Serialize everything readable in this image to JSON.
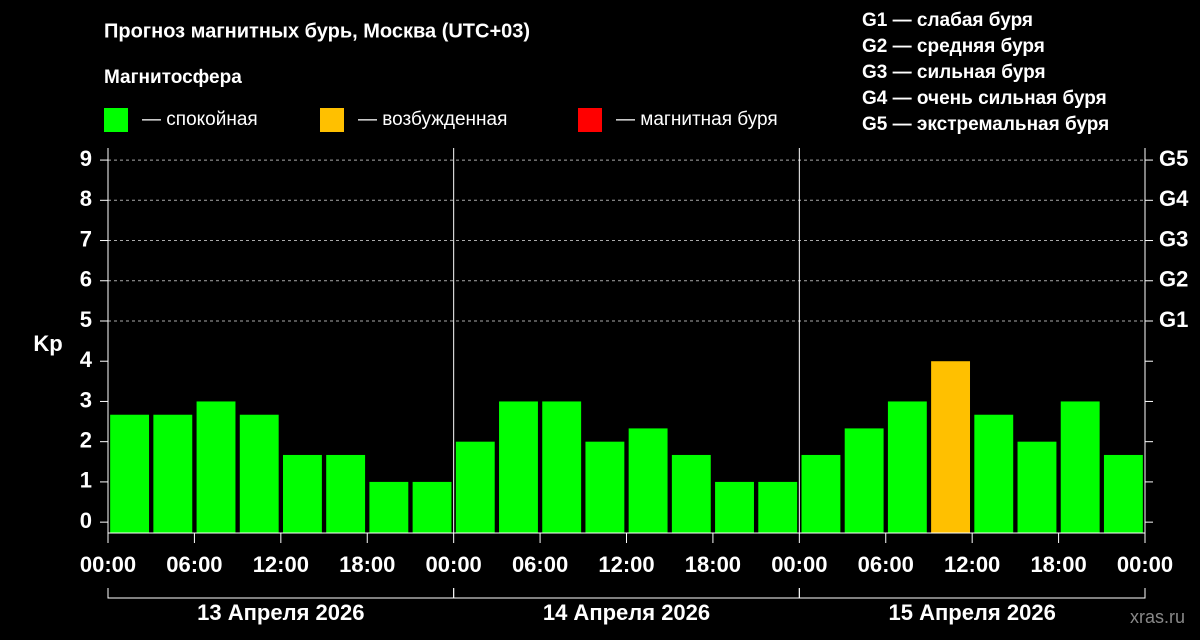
{
  "chart_data": {
    "type": "bar",
    "title": "Прогноз магнитных бурь, Москва (UTC+03)",
    "subtitle": "Магнитосфера",
    "ylabel": "Kp",
    "legend": [
      {
        "label": "— спокойная",
        "color": "#00ff00"
      },
      {
        "label": "— возбужденная",
        "color": "#ffc000"
      },
      {
        "label": "— магнитная буря",
        "color": "#ff0000"
      }
    ],
    "scale_notes": [
      "G1 — слабая буря",
      "G2 — средняя буря",
      "G3 — сильная буря",
      "G4 — очень сильная буря",
      "G5 — экстремальная буря"
    ],
    "x": [
      1.5,
      4.5,
      7.5,
      10.5,
      13.5,
      16.5,
      19.5,
      22.5,
      25.5,
      28.5,
      31.5,
      34.5,
      37.5,
      40.5,
      43.5,
      46.5,
      49.5,
      52.5,
      55.5,
      58.5,
      61.5,
      64.5,
      67.5,
      70.5
    ],
    "values": [
      2.67,
      2.67,
      3,
      2.67,
      1.67,
      1.67,
      1,
      1,
      2,
      3,
      3,
      2,
      2.33,
      1.67,
      1,
      1,
      1.67,
      2.33,
      3,
      4,
      2.67,
      2,
      3,
      1.67
    ],
    "colors": [
      "#00ff00",
      "#00ff00",
      "#00ff00",
      "#00ff00",
      "#00ff00",
      "#00ff00",
      "#00ff00",
      "#00ff00",
      "#00ff00",
      "#00ff00",
      "#00ff00",
      "#00ff00",
      "#00ff00",
      "#00ff00",
      "#00ff00",
      "#00ff00",
      "#00ff00",
      "#00ff00",
      "#00ff00",
      "#ffc000",
      "#00ff00",
      "#00ff00",
      "#00ff00",
      "#00ff00"
    ],
    "xlim": [
      0,
      72
    ],
    "ylim": [
      -0.27,
      9.3
    ],
    "yticks": [
      0,
      1,
      2,
      3,
      4,
      5,
      6,
      7,
      8,
      9
    ],
    "xticks": [
      {
        "value": 0,
        "label": "00:00"
      },
      {
        "value": 6,
        "label": "06:00"
      },
      {
        "value": 12,
        "label": "12:00"
      },
      {
        "value": 18,
        "label": "18:00"
      },
      {
        "value": 24,
        "label": "00:00"
      },
      {
        "value": 30,
        "label": "06:00"
      },
      {
        "value": 36,
        "label": "12:00"
      },
      {
        "value": 42,
        "label": "18:00"
      },
      {
        "value": 48,
        "label": "00:00"
      },
      {
        "value": 54,
        "label": "06:00"
      },
      {
        "value": 60,
        "label": "12:00"
      },
      {
        "value": 66,
        "label": "18:00"
      },
      {
        "value": 72,
        "label": "00:00"
      }
    ],
    "y2ticks": [
      {
        "value": 5,
        "label": "G1"
      },
      {
        "value": 6,
        "label": "G2"
      },
      {
        "value": 7,
        "label": "G3"
      },
      {
        "value": 8,
        "label": "G4"
      },
      {
        "value": 9,
        "label": "G5"
      }
    ],
    "days": [
      {
        "start": 0,
        "end": 24,
        "label": "13 Апреля 2026"
      },
      {
        "start": 24,
        "end": 48,
        "label": "14 Апреля 2026"
      },
      {
        "start": 48,
        "end": 72,
        "label": "15 Апреля 2026"
      }
    ],
    "grid": true,
    "watermark": "xras.ru"
  }
}
